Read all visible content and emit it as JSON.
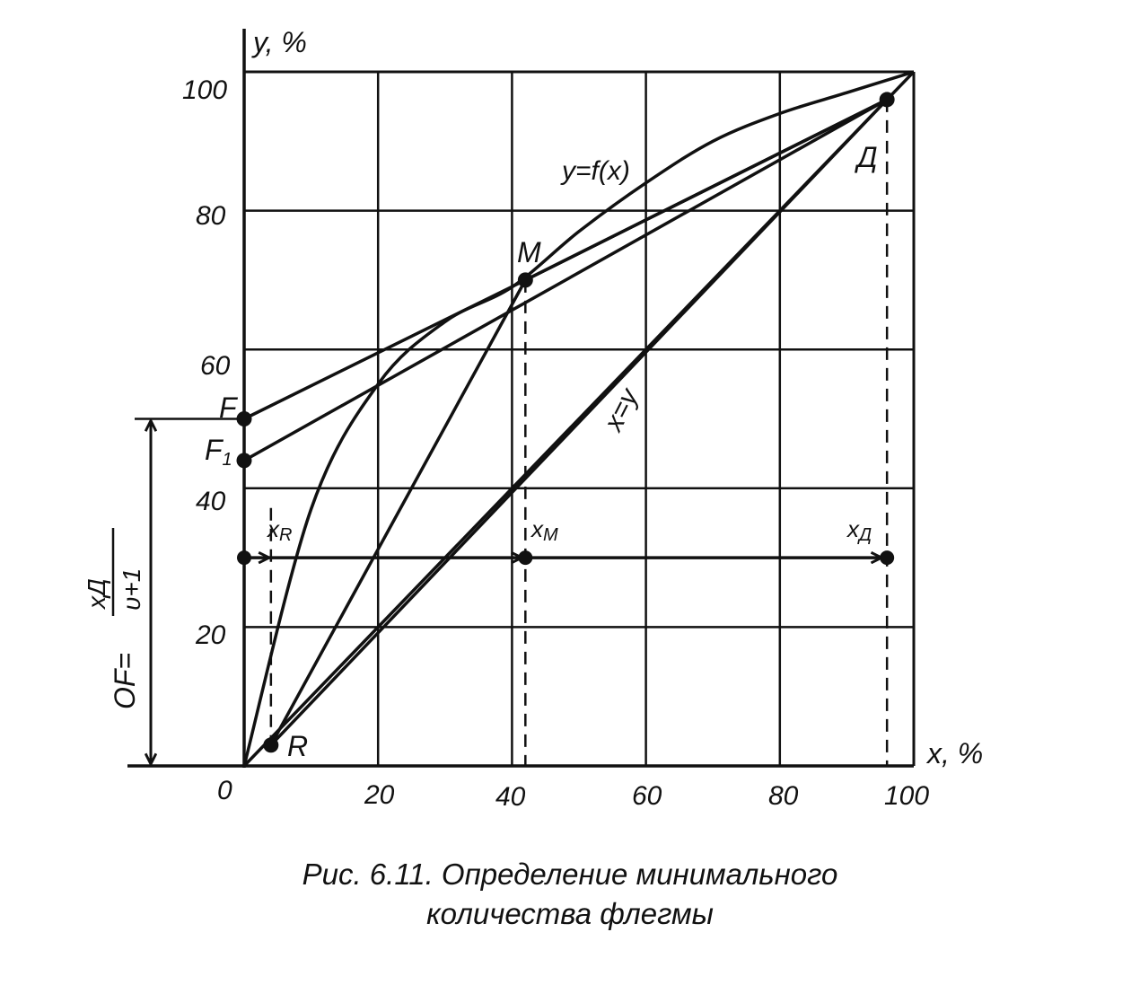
{
  "axes": {
    "y_label": "y, %",
    "x_label": "x, %",
    "x_ticks": [
      "0",
      "20",
      "40",
      "60",
      "80",
      "100"
    ],
    "y_ticks": [
      "20",
      "40",
      "60",
      "80",
      "100"
    ],
    "xlim": [
      0,
      100
    ],
    "ylim": [
      0,
      100
    ],
    "grid": true
  },
  "curves": {
    "equilibrium_label": "y=f(x)",
    "diagonal_label": "x=y"
  },
  "points": {
    "F": "F",
    "F1_main": "F",
    "F1_sub": "1",
    "M": "M",
    "D": "Д",
    "R": "R"
  },
  "x_markers": {
    "xR_main": "x",
    "xR_sub": "R",
    "xM_main": "x",
    "xM_sub": "M",
    "xD_main": "x",
    "xD_sub": "Д"
  },
  "formula": {
    "lhs": "OF=",
    "numerator": "xД",
    "denominator": "υ+1"
  },
  "caption": {
    "line1": "Рис. 6.11. Определение минимального",
    "line2": "количества флегмы"
  },
  "colors": {
    "ink": "#111111",
    "background": "#ffffff"
  },
  "chart_data": {
    "type": "line",
    "series": [
      {
        "x": [
          0,
          10,
          20,
          30,
          40,
          50,
          60,
          70,
          80,
          90,
          100
        ],
        "y": [
          0,
          37,
          55,
          64,
          69,
          77,
          84,
          90,
          94,
          97,
          100
        ]
      },
      {
        "x": [
          0,
          100
        ],
        "y": [
          0,
          100
        ]
      },
      {
        "x": [
          0,
          42,
          96
        ],
        "y": [
          50,
          70,
          96
        ]
      },
      {
        "x": [
          0,
          96
        ],
        "y": [
          44,
          96
        ]
      },
      {
        "x": [
          4,
          42,
          96
        ],
        "y": [
          3,
          70,
          96
        ]
      },
      {
        "x": [
          4,
          96
        ],
        "y": [
          3,
          96
        ]
      }
    ],
    "point_values": {
      "F": [
        0,
        50
      ],
      "F1": [
        0,
        44
      ],
      "M": [
        42,
        70
      ],
      "D": [
        96,
        96
      ],
      "R": [
        4,
        3
      ]
    },
    "markers_x": {
      "xR": 4,
      "xM": 42,
      "xD": 96
    },
    "arrow_level_y": 30,
    "xlim": [
      0,
      100
    ],
    "ylim": [
      0,
      100
    ]
  }
}
